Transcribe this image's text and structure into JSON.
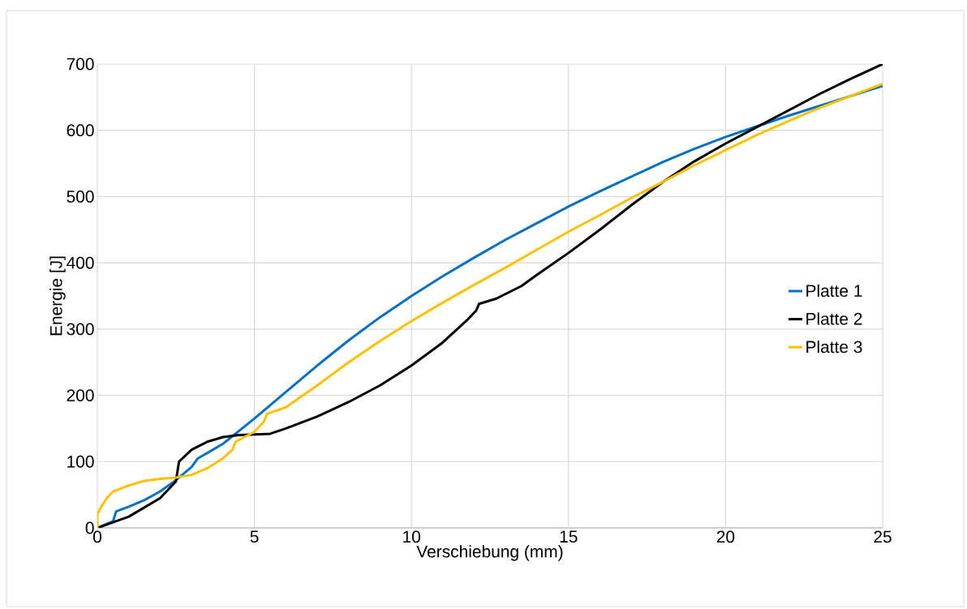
{
  "chart_data": {
    "type": "line",
    "xlabel": "Verschiebung (mm)",
    "ylabel": "Energie [J]",
    "xlim": [
      0,
      25
    ],
    "ylim": [
      0,
      700
    ],
    "xticks": [
      0,
      5,
      10,
      15,
      20,
      25
    ],
    "yticks": [
      0,
      100,
      200,
      300,
      400,
      500,
      600,
      700
    ],
    "grid": true,
    "legend": "right",
    "marker": "none",
    "line_style": "solid",
    "series": [
      {
        "name": "Platte 1",
        "color": "#0070c0",
        "x": [
          0,
          0.5,
          0.6,
          1,
          1.5,
          2,
          2.5,
          3,
          3.2,
          3.5,
          4,
          5,
          6,
          7,
          8,
          9,
          10,
          11,
          12,
          13,
          14,
          15,
          16,
          17,
          18,
          19,
          20,
          21,
          22,
          23,
          24,
          25
        ],
        "values": [
          0,
          10,
          25,
          32,
          42,
          55,
          72,
          92,
          105,
          113,
          127,
          165,
          205,
          245,
          283,
          318,
          350,
          380,
          408,
          435,
          460,
          485,
          508,
          530,
          552,
          572,
          590,
          606,
          622,
          637,
          null,
          667
        ]
      },
      {
        "name": "Platte 2",
        "color": "#000000",
        "x": [
          0,
          1,
          2,
          2.5,
          2.6,
          3,
          3.5,
          4,
          4.5,
          5,
          5.5,
          6,
          7,
          8,
          9,
          10,
          11,
          11.8,
          12.06,
          12.15,
          12.7,
          13.5,
          14,
          15,
          16,
          17,
          18,
          19,
          20,
          21,
          22,
          23,
          24,
          25
        ],
        "values": [
          0,
          17,
          45,
          70,
          100,
          118,
          130,
          137,
          140,
          141,
          142,
          150,
          168,
          190,
          215,
          245,
          280,
          315,
          328,
          338,
          346,
          365,
          382,
          415,
          450,
          487,
          522,
          553,
          580,
          605,
          630,
          655,
          678,
          700
        ]
      },
      {
        "name": "Platte 3",
        "color": "#ffc000",
        "x": [
          0,
          0,
          0.1,
          0.3,
          0.5,
          1,
          1.5,
          2,
          2.5,
          3,
          3.5,
          4,
          4.3,
          4.4,
          5,
          5.3,
          5.4,
          6,
          7,
          8,
          9,
          10,
          11,
          12,
          13,
          14,
          15,
          16,
          17,
          18,
          19,
          20,
          21,
          22,
          23,
          24,
          25
        ],
        "values": [
          0,
          20,
          30,
          45,
          55,
          64,
          71,
          74,
          76,
          80,
          90,
          105,
          118,
          130,
          145,
          160,
          172,
          182,
          215,
          250,
          282,
          312,
          340,
          367,
          393,
          420,
          447,
          472,
          498,
          522,
          547,
          570,
          593,
          614,
          634,
          652,
          670
        ]
      }
    ]
  }
}
